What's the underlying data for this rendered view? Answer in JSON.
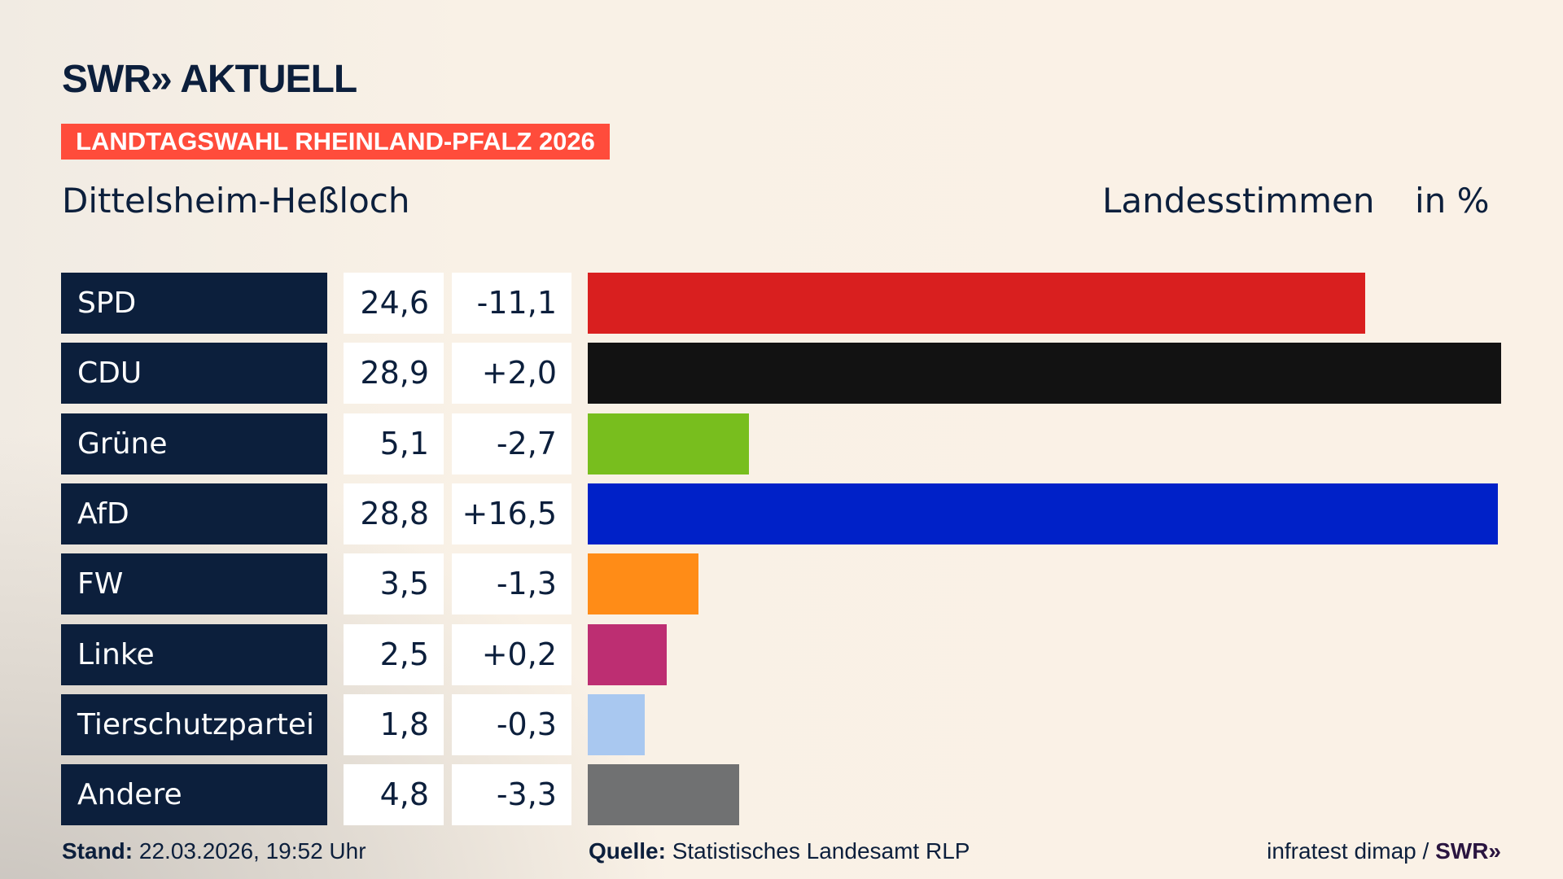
{
  "header": {
    "logo": "SWR» AKTUELL",
    "banner": "LANDTAGSWAHL RHEINLAND-PFALZ 2026",
    "place": "Dittelsheim-Heßloch",
    "metric": "Landesstimmen",
    "unit": "in %"
  },
  "colors": {
    "navy": "#0c1f3c",
    "banner": "#ff4c3b"
  },
  "chart_data": {
    "type": "bar",
    "orientation": "horizontal",
    "categories": [
      "SPD",
      "CDU",
      "Grüne",
      "AfD",
      "FW",
      "Linke",
      "Tierschutzpartei",
      "Andere"
    ],
    "values": [
      24.6,
      28.9,
      5.1,
      28.8,
      3.5,
      2.5,
      1.8,
      4.8
    ],
    "value_labels": [
      "24,6",
      "28,9",
      "5,1",
      "28,8",
      "3,5",
      "2,5",
      "1,8",
      "4,8"
    ],
    "diff_labels": [
      "-11,1",
      "+2,0",
      "-2,7",
      "+16,5",
      "-1,3",
      "+0,2",
      "-0,3",
      "-3,3"
    ],
    "colors": [
      "#d91f1f",
      "#121212",
      "#78be1e",
      "#0021c8",
      "#ff8c17",
      "#bd2e72",
      "#a9c8f0",
      "#707172"
    ],
    "xlim": [
      0,
      28.9
    ],
    "grid": false
  },
  "footer": {
    "stand_label": "Stand:",
    "stand_value": "22.03.2026, 19:52 Uhr",
    "source_label": "Quelle:",
    "source_value": "Statistisches Landesamt RLP",
    "credit": "infratest dimap / ",
    "credit_logo": "SWR»"
  }
}
